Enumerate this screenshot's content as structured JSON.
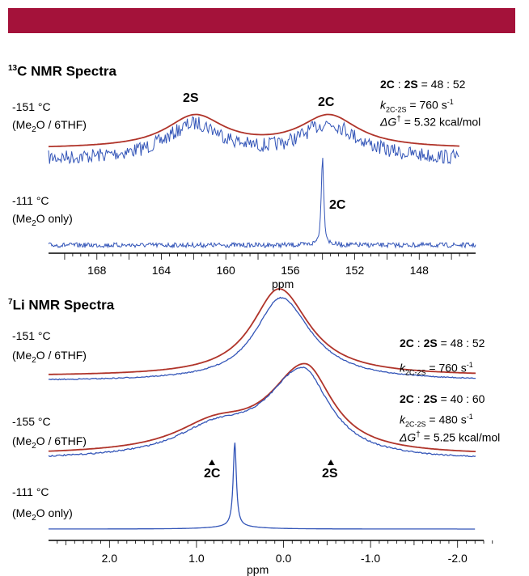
{
  "colors": {
    "banner": "#a4123a",
    "experimental": "#3355b8",
    "simulated": "#b0342a"
  },
  "c13": {
    "title_sup": "13",
    "title": "C NMR Spectra",
    "spectrum1": {
      "temp": "-151 °C",
      "solvent_a": "(Me",
      "solvent_sub": "2",
      "solvent_b": "O / 6THF)"
    },
    "spectrum2": {
      "temp": "-111 °C",
      "solvent_a": "(Me",
      "solvent_sub": "2",
      "solvent_b": "O only)"
    },
    "peak_2S": "2S",
    "peak_2C_top": "2C",
    "peak_2C_bottom": "2C",
    "ratio": {
      "a": "2C",
      "sep": " : ",
      "b": "2S",
      "value": " = 48 : 52"
    },
    "k": {
      "sym": "k",
      "sub": "2C-2S",
      "value": " =  760 s",
      "exp": "-1"
    },
    "dg": {
      "sym": "ΔG",
      "dagger": "†",
      "value": " = 5.32 kcal/mol"
    },
    "axis_label": "ppm"
  },
  "li7": {
    "title_sup": "7",
    "title": "Li NMR Spectra",
    "spectrum1": {
      "temp": "-151 °C",
      "solvent_a": "(Me",
      "solvent_sub": "2",
      "solvent_b": "O / 6THF)"
    },
    "spectrum2": {
      "temp": "-155 °C",
      "solvent_a": "(Me",
      "solvent_sub": "2",
      "solvent_b": "O / 6THF)"
    },
    "spectrum3": {
      "temp": "-111 °C",
      "solvent_a": "(Me",
      "solvent_sub": "2",
      "solvent_b": "O only)"
    },
    "ratio1": {
      "a": "2C",
      "sep": " : ",
      "b": "2S",
      "value": " = 48 : 52"
    },
    "k1": {
      "sym": "k",
      "sub": "2C-2S",
      "value": " =  760 s",
      "exp": "-1"
    },
    "ratio2": {
      "a": "2C",
      "sep": " : ",
      "b": "2S",
      "value": " = 40 : 60"
    },
    "k2": {
      "sym": "k",
      "sub": "2C-2S",
      "value": " =  480 s",
      "exp": "-1"
    },
    "dg": {
      "sym": "ΔG",
      "dagger": "†",
      "value": " = 5.25 kcal/mol"
    },
    "marker_2C": "2C",
    "marker_2S": "2S",
    "axis_label": "ppm"
  },
  "chart_data": [
    {
      "type": "line",
      "title": "13C NMR Spectra",
      "xlabel": "ppm",
      "xlim": [
        171,
        144.5
      ],
      "x_ticks": [
        168,
        164,
        160,
        156,
        152,
        148
      ],
      "x_tick_labels": [
        "168",
        "164",
        "160",
        "156",
        "152",
        "148"
      ],
      "series": [
        {
          "name": "-151 °C (Me2O / 6THF) experimental",
          "peaks_ppm": [
            161.9,
            153.6
          ]
        },
        {
          "name": "-151 °C (Me2O / 6THF) simulated",
          "peaks_ppm": [
            161.9,
            153.6
          ]
        },
        {
          "name": "-111 °C (Me2O only)",
          "peaks_ppm": [
            154.0
          ]
        }
      ]
    },
    {
      "type": "line",
      "title": "7Li NMR Spectra",
      "xlabel": "ppm",
      "xlim": [
        2.7,
        -2.3
      ],
      "x_ticks": [
        2.0,
        1.0,
        0.0,
        -1.0,
        -2.0
      ],
      "x_tick_labels": [
        "2.0",
        "1.0",
        "0.0",
        "-1.0",
        "-2.0"
      ],
      "series": [
        {
          "name": "-151 °C (Me2O / 6THF)",
          "peaks_ppm": [
            0.05
          ]
        },
        {
          "name": "-155 °C (Me2O / 6THF)",
          "peaks_ppm": [
            -0.25
          ]
        },
        {
          "name": "-111 °C (Me2O only)",
          "peaks_ppm": [
            0.56
          ]
        }
      ],
      "markers_ppm": {
        "2C": 0.83,
        "2S": -0.52
      }
    }
  ]
}
